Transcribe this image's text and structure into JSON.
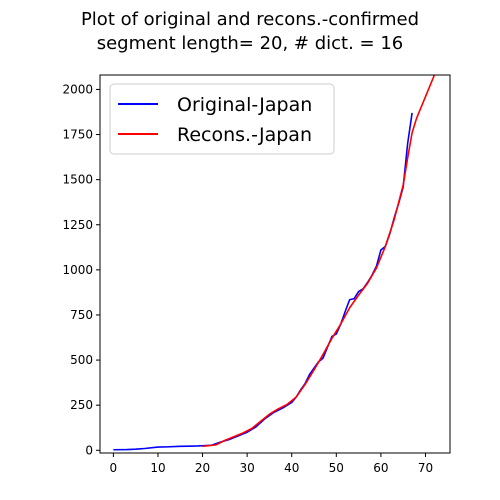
{
  "chart_data": {
    "type": "line",
    "title_lines": [
      "Plot of original and recons.-confirmed",
      "segment length= 20, # dict. = 16"
    ],
    "xlabel": "",
    "ylabel": "",
    "xlim": [
      -3,
      75.5
    ],
    "ylim": [
      -15,
      2080
    ],
    "xticks": [
      0,
      10,
      20,
      30,
      40,
      50,
      60,
      70
    ],
    "yticks": [
      0,
      250,
      500,
      750,
      1000,
      1250,
      1500,
      1750,
      2000
    ],
    "grid": false,
    "legend_position": "top-left",
    "series": [
      {
        "name": "Original-Japan",
        "color": "#0000ff",
        "points": [
          [
            0,
            3
          ],
          [
            3,
            4
          ],
          [
            5,
            6
          ],
          [
            7,
            10
          ],
          [
            10,
            18
          ],
          [
            12,
            19
          ],
          [
            15,
            22
          ],
          [
            17,
            23
          ],
          [
            19,
            24
          ],
          [
            22,
            28
          ],
          [
            24,
            45
          ],
          [
            26,
            60
          ],
          [
            28,
            80
          ],
          [
            30,
            100
          ],
          [
            32,
            130
          ],
          [
            34,
            175
          ],
          [
            36,
            210
          ],
          [
            38,
            235
          ],
          [
            40,
            265
          ],
          [
            41,
            295
          ],
          [
            42,
            335
          ],
          [
            43,
            370
          ],
          [
            44,
            420
          ],
          [
            46,
            490
          ],
          [
            47,
            510
          ],
          [
            48,
            570
          ],
          [
            49,
            630
          ],
          [
            50,
            645
          ],
          [
            51,
            700
          ],
          [
            52,
            770
          ],
          [
            53,
            835
          ],
          [
            54,
            840
          ],
          [
            55,
            880
          ],
          [
            56,
            895
          ],
          [
            57,
            930
          ],
          [
            58,
            970
          ],
          [
            59,
            1020
          ],
          [
            60,
            1110
          ],
          [
            61,
            1130
          ],
          [
            62,
            1200
          ],
          [
            63,
            1290
          ],
          [
            64,
            1370
          ],
          [
            65,
            1460
          ],
          [
            66,
            1700
          ],
          [
            67,
            1870
          ]
        ]
      },
      {
        "name": "Recons.-Japan",
        "color": "#ff0000",
        "points": [
          [
            20,
            22
          ],
          [
            23,
            30
          ],
          [
            25,
            55
          ],
          [
            27,
            75
          ],
          [
            29,
            95
          ],
          [
            31,
            120
          ],
          [
            33,
            160
          ],
          [
            35,
            200
          ],
          [
            37,
            230
          ],
          [
            39,
            255
          ],
          [
            41,
            295
          ],
          [
            43,
            365
          ],
          [
            45,
            445
          ],
          [
            47,
            530
          ],
          [
            49,
            620
          ],
          [
            51,
            700
          ],
          [
            53,
            790
          ],
          [
            55,
            860
          ],
          [
            57,
            925
          ],
          [
            59,
            1010
          ],
          [
            61,
            1130
          ],
          [
            63,
            1280
          ],
          [
            65,
            1470
          ],
          [
            66,
            1620
          ],
          [
            67,
            1760
          ],
          [
            68,
            1840
          ],
          [
            70,
            1960
          ],
          [
            72,
            2080
          ]
        ]
      }
    ]
  }
}
